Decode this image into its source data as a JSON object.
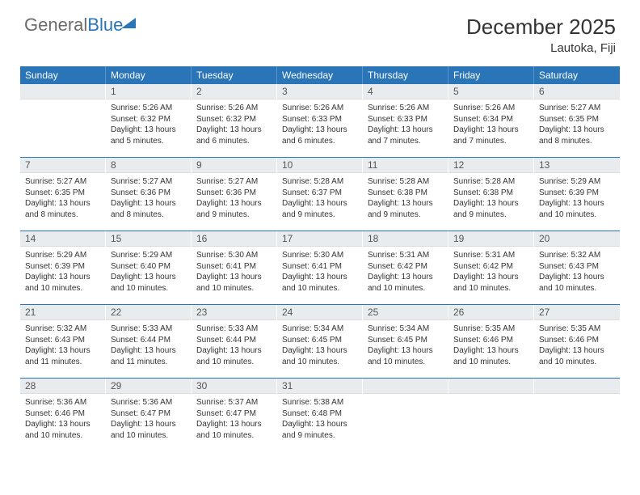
{
  "brand": {
    "text1": "General",
    "text2": "Blue"
  },
  "header": {
    "title": "December 2025",
    "location": "Lautoka, Fiji"
  },
  "colors": {
    "accent": "#2a74b8",
    "daybar": "#e9ecef",
    "text": "#333333",
    "bg": "#ffffff"
  },
  "weekdays": [
    "Sunday",
    "Monday",
    "Tuesday",
    "Wednesday",
    "Thursday",
    "Friday",
    "Saturday"
  ],
  "startOffset": 1,
  "days": [
    {
      "n": 1,
      "sunrise": "5:26 AM",
      "sunset": "6:32 PM",
      "daylight": "13 hours and 5 minutes."
    },
    {
      "n": 2,
      "sunrise": "5:26 AM",
      "sunset": "6:32 PM",
      "daylight": "13 hours and 6 minutes."
    },
    {
      "n": 3,
      "sunrise": "5:26 AM",
      "sunset": "6:33 PM",
      "daylight": "13 hours and 6 minutes."
    },
    {
      "n": 4,
      "sunrise": "5:26 AM",
      "sunset": "6:33 PM",
      "daylight": "13 hours and 7 minutes."
    },
    {
      "n": 5,
      "sunrise": "5:26 AM",
      "sunset": "6:34 PM",
      "daylight": "13 hours and 7 minutes."
    },
    {
      "n": 6,
      "sunrise": "5:27 AM",
      "sunset": "6:35 PM",
      "daylight": "13 hours and 8 minutes."
    },
    {
      "n": 7,
      "sunrise": "5:27 AM",
      "sunset": "6:35 PM",
      "daylight": "13 hours and 8 minutes."
    },
    {
      "n": 8,
      "sunrise": "5:27 AM",
      "sunset": "6:36 PM",
      "daylight": "13 hours and 8 minutes."
    },
    {
      "n": 9,
      "sunrise": "5:27 AM",
      "sunset": "6:36 PM",
      "daylight": "13 hours and 9 minutes."
    },
    {
      "n": 10,
      "sunrise": "5:28 AM",
      "sunset": "6:37 PM",
      "daylight": "13 hours and 9 minutes."
    },
    {
      "n": 11,
      "sunrise": "5:28 AM",
      "sunset": "6:38 PM",
      "daylight": "13 hours and 9 minutes."
    },
    {
      "n": 12,
      "sunrise": "5:28 AM",
      "sunset": "6:38 PM",
      "daylight": "13 hours and 9 minutes."
    },
    {
      "n": 13,
      "sunrise": "5:29 AM",
      "sunset": "6:39 PM",
      "daylight": "13 hours and 10 minutes."
    },
    {
      "n": 14,
      "sunrise": "5:29 AM",
      "sunset": "6:39 PM",
      "daylight": "13 hours and 10 minutes."
    },
    {
      "n": 15,
      "sunrise": "5:29 AM",
      "sunset": "6:40 PM",
      "daylight": "13 hours and 10 minutes."
    },
    {
      "n": 16,
      "sunrise": "5:30 AM",
      "sunset": "6:41 PM",
      "daylight": "13 hours and 10 minutes."
    },
    {
      "n": 17,
      "sunrise": "5:30 AM",
      "sunset": "6:41 PM",
      "daylight": "13 hours and 10 minutes."
    },
    {
      "n": 18,
      "sunrise": "5:31 AM",
      "sunset": "6:42 PM",
      "daylight": "13 hours and 10 minutes."
    },
    {
      "n": 19,
      "sunrise": "5:31 AM",
      "sunset": "6:42 PM",
      "daylight": "13 hours and 10 minutes."
    },
    {
      "n": 20,
      "sunrise": "5:32 AM",
      "sunset": "6:43 PM",
      "daylight": "13 hours and 10 minutes."
    },
    {
      "n": 21,
      "sunrise": "5:32 AM",
      "sunset": "6:43 PM",
      "daylight": "13 hours and 11 minutes."
    },
    {
      "n": 22,
      "sunrise": "5:33 AM",
      "sunset": "6:44 PM",
      "daylight": "13 hours and 11 minutes."
    },
    {
      "n": 23,
      "sunrise": "5:33 AM",
      "sunset": "6:44 PM",
      "daylight": "13 hours and 10 minutes."
    },
    {
      "n": 24,
      "sunrise": "5:34 AM",
      "sunset": "6:45 PM",
      "daylight": "13 hours and 10 minutes."
    },
    {
      "n": 25,
      "sunrise": "5:34 AM",
      "sunset": "6:45 PM",
      "daylight": "13 hours and 10 minutes."
    },
    {
      "n": 26,
      "sunrise": "5:35 AM",
      "sunset": "6:46 PM",
      "daylight": "13 hours and 10 minutes."
    },
    {
      "n": 27,
      "sunrise": "5:35 AM",
      "sunset": "6:46 PM",
      "daylight": "13 hours and 10 minutes."
    },
    {
      "n": 28,
      "sunrise": "5:36 AM",
      "sunset": "6:46 PM",
      "daylight": "13 hours and 10 minutes."
    },
    {
      "n": 29,
      "sunrise": "5:36 AM",
      "sunset": "6:47 PM",
      "daylight": "13 hours and 10 minutes."
    },
    {
      "n": 30,
      "sunrise": "5:37 AM",
      "sunset": "6:47 PM",
      "daylight": "13 hours and 10 minutes."
    },
    {
      "n": 31,
      "sunrise": "5:38 AM",
      "sunset": "6:48 PM",
      "daylight": "13 hours and 9 minutes."
    }
  ],
  "labels": {
    "sunrise": "Sunrise: ",
    "sunset": "Sunset: ",
    "daylight": "Daylight: "
  }
}
